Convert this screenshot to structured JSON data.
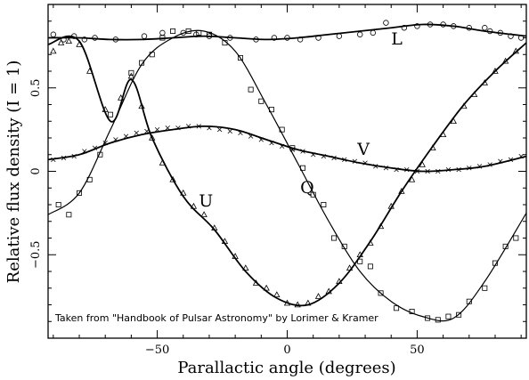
{
  "chart_data": {
    "type": "scatter",
    "title": "",
    "xlabel": "Parallactic angle (degrees)",
    "ylabel": "Relative flux density (I = 1)",
    "xlim": [
      -92,
      92
    ],
    "ylim": [
      -1.0,
      1.0
    ],
    "x_ticks": [
      -50,
      0,
      50
    ],
    "x_tick_labels": [
      "−50",
      "0",
      "50"
    ],
    "y_ticks": [
      -0.5,
      0,
      0.5
    ],
    "y_tick_labels": [
      "−0.5",
      "0",
      "0.5"
    ],
    "grid": false,
    "legend": "none",
    "annotation": "Taken from \"Handbook of Pulsar Astronomy\" by Lorimer & Kramer",
    "curve_labels": [
      {
        "text": "L",
        "x": 40,
        "y": 0.76
      },
      {
        "text": "V",
        "x": 27,
        "y": 0.1
      },
      {
        "text": "Q",
        "x": 5,
        "y": -0.13
      },
      {
        "text": "U",
        "x": -34,
        "y": -0.21
      }
    ],
    "series": [
      {
        "name": "L",
        "marker": "circle",
        "x": [
          -90,
          -86,
          -82,
          -78,
          -74,
          -66,
          -55,
          -48,
          -40,
          -35,
          -30,
          -22,
          -12,
          -5,
          0,
          5,
          12,
          20,
          28,
          33,
          38,
          45,
          50,
          55,
          60,
          64,
          70,
          76,
          78,
          82,
          86,
          90
        ],
        "y": [
          0.82,
          0.79,
          0.81,
          0.79,
          0.8,
          0.79,
          0.81,
          0.83,
          0.83,
          0.82,
          0.81,
          0.8,
          0.79,
          0.8,
          0.8,
          0.79,
          0.8,
          0.81,
          0.82,
          0.83,
          0.89,
          0.86,
          0.87,
          0.88,
          0.88,
          0.87,
          0.86,
          0.86,
          0.84,
          0.83,
          0.81,
          0.8
        ]
      },
      {
        "name": "V",
        "marker": "cross",
        "x": [
          -90,
          -86,
          -82,
          -78,
          -74,
          -70,
          -66,
          -62,
          -58,
          -54,
          -50,
          -46,
          -42,
          -38,
          -34,
          -30,
          -26,
          -22,
          -18,
          -14,
          -10,
          -6,
          -2,
          2,
          6,
          10,
          14,
          18,
          22,
          26,
          30,
          34,
          38,
          42,
          46,
          50,
          54,
          58,
          62,
          66,
          70,
          74,
          78,
          82,
          86,
          90
        ],
        "y": [
          0.07,
          0.08,
          0.09,
          0.12,
          0.14,
          0.17,
          0.19,
          0.21,
          0.23,
          0.24,
          0.25,
          0.26,
          0.26,
          0.27,
          0.27,
          0.26,
          0.25,
          0.24,
          0.23,
          0.21,
          0.19,
          0.17,
          0.15,
          0.13,
          0.12,
          0.1,
          0.09,
          0.08,
          0.07,
          0.06,
          0.05,
          0.03,
          0.02,
          0.01,
          0.01,
          0.0,
          0.0,
          0.0,
          0.01,
          0.01,
          0.02,
          0.03,
          0.04,
          0.06,
          0.07,
          0.09
        ]
      },
      {
        "name": "Q",
        "marker": "square",
        "x": [
          -88,
          -84,
          -80,
          -76,
          -72,
          -68,
          -60,
          -56,
          -52,
          -48,
          -44,
          -38,
          -34,
          -30,
          -24,
          -18,
          -14,
          -10,
          -6,
          -2,
          2,
          6,
          10,
          14,
          18,
          22,
          28,
          32,
          36,
          42,
          48,
          54,
          58,
          62,
          66,
          70,
          76,
          80,
          84,
          88
        ],
        "y": [
          -0.2,
          -0.26,
          -0.13,
          -0.05,
          0.1,
          0.34,
          0.59,
          0.65,
          0.7,
          0.8,
          0.84,
          0.84,
          0.83,
          0.82,
          0.77,
          0.68,
          0.49,
          0.42,
          0.37,
          0.25,
          0.14,
          0.02,
          -0.14,
          -0.2,
          -0.4,
          -0.45,
          -0.54,
          -0.57,
          -0.73,
          -0.82,
          -0.84,
          -0.88,
          -0.89,
          -0.87,
          -0.86,
          -0.78,
          -0.7,
          -0.55,
          -0.45,
          -0.4
        ]
      },
      {
        "name": "U",
        "marker": "triangle",
        "x": [
          -90,
          -87,
          -84,
          -80,
          -76,
          -70,
          -64,
          -60,
          -56,
          -52,
          -48,
          -44,
          -40,
          -36,
          -32,
          -28,
          -24,
          -20,
          -16,
          -12,
          -8,
          -4,
          0,
          4,
          8,
          12,
          16,
          20,
          24,
          28,
          32,
          36,
          40,
          44,
          48,
          52,
          56,
          60,
          64,
          68,
          72,
          76,
          80,
          84,
          88
        ],
        "y": [
          0.72,
          0.77,
          0.78,
          0.76,
          0.6,
          0.37,
          0.44,
          0.57,
          0.39,
          0.2,
          0.05,
          -0.05,
          -0.13,
          -0.21,
          -0.26,
          -0.34,
          -0.42,
          -0.51,
          -0.58,
          -0.67,
          -0.7,
          -0.74,
          -0.79,
          -0.8,
          -0.79,
          -0.75,
          -0.72,
          -0.66,
          -0.58,
          -0.5,
          -0.43,
          -0.33,
          -0.21,
          -0.12,
          -0.05,
          0.04,
          0.14,
          0.22,
          0.3,
          0.39,
          0.46,
          0.53,
          0.6,
          0.66,
          0.72
        ]
      }
    ],
    "model_curves": {
      "L": {
        "x": [
          -92,
          -80,
          -68,
          -56,
          -44,
          -32,
          -20,
          -8,
          4,
          16,
          28,
          40,
          52,
          64,
          76,
          92
        ],
        "y": [
          0.8,
          0.8,
          0.79,
          0.79,
          0.8,
          0.81,
          0.8,
          0.79,
          0.8,
          0.82,
          0.84,
          0.86,
          0.88,
          0.87,
          0.84,
          0.81
        ]
      },
      "V": {
        "x": [
          -92,
          -80,
          -68,
          -56,
          -44,
          -32,
          -20,
          -8,
          4,
          16,
          28,
          40,
          52,
          64,
          76,
          92
        ],
        "y": [
          0.07,
          0.1,
          0.17,
          0.22,
          0.25,
          0.27,
          0.25,
          0.19,
          0.13,
          0.09,
          0.05,
          0.02,
          0.0,
          0.01,
          0.03,
          0.09
        ]
      },
      "Q": {
        "x": [
          -92,
          -80,
          -68,
          -56,
          -44,
          -32,
          -20,
          -8,
          4,
          16,
          28,
          40,
          52,
          64,
          76,
          92
        ],
        "y": [
          -0.26,
          -0.13,
          0.25,
          0.64,
          0.8,
          0.84,
          0.72,
          0.4,
          0.05,
          -0.3,
          -0.6,
          -0.78,
          -0.87,
          -0.88,
          -0.66,
          -0.25
        ]
      },
      "U": {
        "x": [
          -92,
          -80,
          -68,
          -60,
          -52,
          -40,
          -28,
          -16,
          -4,
          8,
          20,
          32,
          44,
          56,
          68,
          80,
          92
        ],
        "y": [
          0.76,
          0.78,
          0.3,
          0.55,
          0.2,
          -0.15,
          -0.35,
          -0.6,
          -0.76,
          -0.8,
          -0.67,
          -0.42,
          -0.12,
          0.15,
          0.4,
          0.6,
          0.77
        ]
      }
    }
  }
}
